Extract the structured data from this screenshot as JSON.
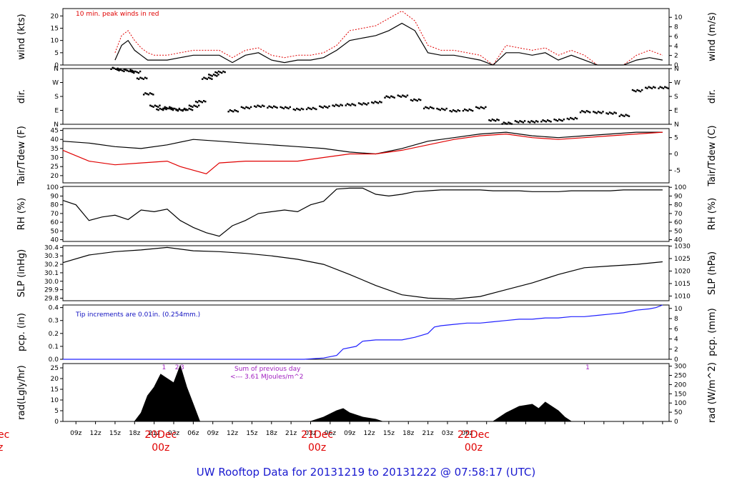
{
  "title": "UW Rooftop Data for 20131219  to  20131222 @ 07:58:17  (UTC)",
  "x_ticks": [
    "09z",
    "12z",
    "15z",
    "18z",
    "21z",
    "03z",
    "06z",
    "09z",
    "12z",
    "15z",
    "18z",
    "21z",
    "03z",
    "06z",
    "09z",
    "12z",
    "15z",
    "18z",
    "21z",
    "03z",
    "06z"
  ],
  "day_labels": [
    {
      "label": "20Dec",
      "sub": "00z"
    },
    {
      "label": "21Dec",
      "sub": "00z"
    },
    {
      "label": "22Dec",
      "sub": "00z"
    }
  ],
  "left_edge_labels": {
    "top": "ec",
    "bottom": "z"
  },
  "colors": {
    "red": "#e00000",
    "blue": "#2020ff",
    "purple": "#a020c0",
    "black": "#000000"
  },
  "chart_data": [
    {
      "type": "line",
      "panel": "wind",
      "ylabel_left": "wind (kts)",
      "ylabel_right": "wind (m/s)",
      "ylim": [
        0,
        23
      ],
      "left_ticks": [
        0,
        5,
        10,
        15,
        20
      ],
      "right_ticks": [
        0,
        2,
        4,
        6,
        8,
        10
      ],
      "annotation": "10 min. peak winds in red",
      "series": [
        {
          "name": "10 min. peak winds",
          "color": "#e00000",
          "x": [
            8,
            9,
            10,
            11,
            12,
            13,
            14,
            16,
            18,
            20,
            22,
            24,
            26,
            28,
            30,
            32,
            34,
            36,
            38,
            40,
            42,
            44,
            46,
            48,
            50,
            52,
            54,
            56,
            58,
            60,
            62,
            64,
            66,
            68,
            70,
            72,
            74,
            76,
            78,
            80,
            82,
            84,
            86,
            88,
            90,
            92
          ],
          "y": [
            5,
            12,
            14,
            10,
            7,
            5,
            4,
            4,
            5,
            6,
            6,
            6,
            3,
            6,
            7,
            4,
            3,
            4,
            4,
            5,
            8,
            14,
            15,
            16,
            19,
            22,
            18,
            8,
            6,
            6,
            5,
            4,
            0,
            8,
            7,
            6,
            7,
            4,
            6,
            4,
            0,
            0,
            0,
            4,
            6,
            4
          ]
        },
        {
          "name": "",
          "color": "#000000",
          "x": [
            8,
            9,
            10,
            11,
            12,
            13,
            14,
            16,
            18,
            20,
            22,
            24,
            26,
            28,
            30,
            32,
            34,
            36,
            38,
            40,
            42,
            44,
            46,
            48,
            50,
            52,
            54,
            56,
            58,
            60,
            62,
            64,
            66,
            68,
            70,
            72,
            74,
            76,
            78,
            80,
            82,
            84,
            86,
            88,
            90,
            92
          ],
          "y": [
            2,
            8,
            10,
            6,
            4,
            2,
            2,
            2,
            3,
            4,
            4,
            4,
            1,
            4,
            5,
            2,
            1,
            2,
            2,
            3,
            6,
            10,
            11,
            12,
            14,
            17,
            14,
            5,
            4,
            4,
            3,
            2,
            0,
            5,
            5,
            4,
            5,
            2,
            4,
            2,
            0,
            0,
            0,
            2,
            3,
            2
          ]
        }
      ]
    },
    {
      "type": "scatter",
      "panel": "dir",
      "ylabel_left": "dir.",
      "ylabel_right": "dir.",
      "left_ticks": [
        "N",
        "E",
        "S",
        "W",
        "N"
      ],
      "right_ticks": [
        "N",
        "E",
        "S",
        "W",
        "N"
      ],
      "ylim": [
        0,
        360
      ],
      "series": [
        {
          "name": "",
          "x": [
            8,
            9,
            10,
            11,
            12,
            13,
            14,
            15,
            16,
            17,
            18,
            19,
            20,
            21,
            22,
            23,
            24,
            26,
            28,
            30,
            32,
            34,
            36,
            38,
            40,
            42,
            44,
            46,
            48,
            50,
            52,
            54,
            56,
            58,
            60,
            62,
            64,
            66,
            68,
            70,
            72,
            74,
            76,
            78,
            80,
            82,
            84,
            86,
            88,
            90,
            92
          ],
          "y": [
            355,
            350,
            350,
            340,
            300,
            200,
            120,
            100,
            110,
            100,
            95,
            100,
            120,
            150,
            300,
            320,
            340,
            90,
            110,
            120,
            115,
            110,
            100,
            105,
            115,
            125,
            130,
            135,
            145,
            180,
            185,
            160,
            110,
            100,
            90,
            95,
            110,
            30,
            10,
            20,
            20,
            25,
            30,
            40,
            85,
            80,
            75,
            60,
            220,
            240,
            240
          ]
        }
      ]
    },
    {
      "type": "line",
      "panel": "temp",
      "ylabel_left": "Tair/Tdew (F)",
      "ylabel_right": "Tair/Tdew (C)",
      "ylim": [
        16,
        46
      ],
      "left_ticks": [
        20,
        25,
        30,
        35,
        40,
        45
      ],
      "right_ticks": [
        -5,
        0,
        5
      ],
      "series": [
        {
          "name": "Tair",
          "color": "#000000",
          "x": [
            0,
            4,
            8,
            12,
            16,
            20,
            24,
            28,
            32,
            36,
            40,
            44,
            48,
            52,
            56,
            60,
            64,
            68,
            72,
            76,
            80,
            84,
            88,
            92
          ],
          "y": [
            39,
            38,
            36,
            35,
            37,
            40,
            39,
            38,
            37,
            36,
            35,
            33,
            32,
            35,
            39,
            41,
            43,
            44,
            42,
            41,
            42,
            43,
            44,
            44
          ]
        },
        {
          "name": "Tdew",
          "color": "#e00000",
          "x": [
            0,
            4,
            8,
            12,
            16,
            18,
            20,
            22,
            24,
            28,
            32,
            36,
            40,
            44,
            48,
            52,
            56,
            60,
            64,
            68,
            72,
            76,
            80,
            84,
            88,
            92
          ],
          "y": [
            34,
            28,
            26,
            27,
            28,
            25,
            23,
            21,
            27,
            28,
            28,
            28,
            30,
            32,
            32,
            34,
            37,
            40,
            42,
            43,
            41,
            40,
            41,
            42,
            43,
            44
          ]
        }
      ]
    },
    {
      "type": "line",
      "panel": "rh",
      "ylabel_left": "RH (%)",
      "ylabel_right": "RH (%)",
      "ylim": [
        38,
        101
      ],
      "left_ticks": [
        40,
        50,
        60,
        70,
        80,
        90,
        100
      ],
      "right_ticks": [
        40,
        50,
        60,
        70,
        80,
        90,
        100
      ],
      "series": [
        {
          "name": "",
          "color": "#000000",
          "x": [
            0,
            2,
            4,
            6,
            8,
            10,
            12,
            14,
            16,
            18,
            20,
            22,
            24,
            26,
            28,
            30,
            32,
            34,
            36,
            38,
            40,
            42,
            44,
            46,
            48,
            50,
            52,
            54,
            56,
            58,
            60,
            62,
            64,
            66,
            68,
            70,
            72,
            74,
            76,
            78,
            80,
            82,
            84,
            86,
            88,
            90,
            92
          ],
          "y": [
            85,
            80,
            62,
            66,
            68,
            63,
            74,
            72,
            75,
            62,
            54,
            48,
            44,
            56,
            62,
            70,
            72,
            74,
            72,
            80,
            84,
            98,
            99,
            99,
            92,
            90,
            92,
            95,
            96,
            97,
            97,
            97,
            97,
            96,
            96,
            96,
            95,
            95,
            95,
            96,
            96,
            96,
            96,
            97,
            97,
            97,
            97
          ]
        }
      ]
    },
    {
      "type": "line",
      "panel": "slp",
      "ylabel_left": "SLP (inHg)",
      "ylabel_right": "SLP (hPa)",
      "ylim": [
        29.77,
        30.42
      ],
      "left_ticks": [
        29.8,
        29.9,
        30.0,
        30.1,
        30.2,
        30.3,
        30.4
      ],
      "right_ticks": [
        1010,
        1015,
        1020,
        1025,
        1030
      ],
      "series": [
        {
          "name": "",
          "color": "#000000",
          "x": [
            0,
            4,
            8,
            12,
            16,
            20,
            24,
            28,
            32,
            36,
            40,
            44,
            48,
            52,
            56,
            60,
            64,
            68,
            72,
            76,
            80,
            84,
            88,
            92
          ],
          "y": [
            30.22,
            30.31,
            30.35,
            30.37,
            30.4,
            30.36,
            30.35,
            30.33,
            30.3,
            30.26,
            30.2,
            30.08,
            29.95,
            29.84,
            29.8,
            29.79,
            29.82,
            29.9,
            29.98,
            30.08,
            30.16,
            30.18,
            30.2,
            30.23
          ]
        }
      ]
    },
    {
      "type": "line",
      "panel": "pcp",
      "ylabel_left": "pcp. (in)",
      "ylabel_right": "pcp. (mm)",
      "ylim": [
        0,
        0.42
      ],
      "left_ticks": [
        0.0,
        0.1,
        0.2,
        0.3,
        0.4
      ],
      "right_ticks": [
        0,
        2,
        4,
        6,
        8,
        10
      ],
      "annotation": "Tip increments are 0.01in. (0.254mm.)",
      "series": [
        {
          "name": "",
          "color": "#2020ff",
          "x": [
            0,
            37,
            40,
            42,
            43,
            45,
            46,
            48,
            50,
            52,
            54,
            56,
            57,
            58,
            60,
            62,
            64,
            66,
            68,
            70,
            72,
            74,
            76,
            78,
            80,
            82,
            84,
            86,
            88,
            90,
            91,
            92
          ],
          "y": [
            0,
            0,
            0.01,
            0.03,
            0.08,
            0.1,
            0.14,
            0.15,
            0.15,
            0.15,
            0.17,
            0.2,
            0.25,
            0.26,
            0.27,
            0.28,
            0.28,
            0.29,
            0.3,
            0.31,
            0.31,
            0.32,
            0.32,
            0.33,
            0.33,
            0.34,
            0.35,
            0.36,
            0.38,
            0.39,
            0.4,
            0.42
          ]
        }
      ]
    },
    {
      "type": "area",
      "panel": "rad",
      "ylabel_left": "rad(Lgly/hr)",
      "ylabel_right": "rad (W/m^2)",
      "ylim": [
        0,
        27
      ],
      "left_ticks": [
        0,
        5,
        10,
        15,
        20,
        25
      ],
      "right_ticks": [
        0,
        50,
        100,
        150,
        200,
        250,
        300
      ],
      "annotation_1": "Sum of previous day",
      "annotation_2": "<--- 3.61 MJoules/m^2",
      "top_marks": [
        {
          "x": 15.5,
          "label": "1"
        },
        {
          "x": 17.5,
          "label": "2"
        },
        {
          "x": 18.3,
          "label": "3"
        },
        {
          "x": 80.5,
          "label": "1"
        }
      ],
      "series": [
        {
          "name": "",
          "color": "#000000",
          "x": [
            11,
            12,
            13,
            14,
            15,
            16,
            17,
            18,
            19,
            20,
            21,
            38,
            40,
            42,
            43,
            44,
            46,
            48,
            49,
            66,
            68,
            70,
            72,
            73,
            74,
            76,
            77,
            78
          ],
          "y": [
            0,
            4,
            12,
            16,
            22,
            20,
            18,
            26,
            16,
            8,
            0,
            0,
            2,
            5,
            6,
            4,
            2,
            1,
            0,
            0,
            4,
            7,
            8,
            6,
            9,
            5,
            2,
            0
          ]
        }
      ]
    }
  ]
}
